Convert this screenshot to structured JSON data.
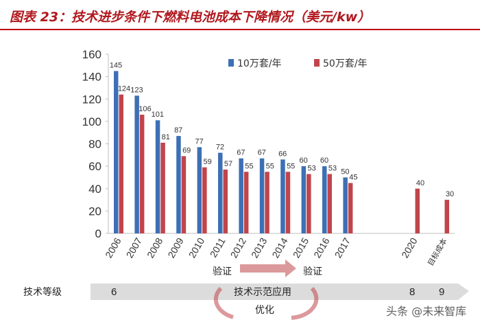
{
  "header": {
    "title": "图表 23：技术进步条件下燃料电池成本下降情况（美元/kw）"
  },
  "colors": {
    "series1": "#3d6fb5",
    "series2": "#c0454b",
    "title": "#b0181e",
    "arrow": "#d9d9d9",
    "cycle": "#c0454b"
  },
  "chart_data": {
    "type": "bar",
    "categories": [
      "2006",
      "2007",
      "2008",
      "2009",
      "2010",
      "2011",
      "2012",
      "2013",
      "2014",
      "2015",
      "2016",
      "2017",
      "2020",
      "目标成本"
    ],
    "series": [
      {
        "name": "10万套/年",
        "values": [
          145,
          123,
          101,
          87,
          77,
          72,
          67,
          67,
          66,
          60,
          60,
          50,
          null,
          null
        ]
      },
      {
        "name": "50万套/年",
        "values": [
          124,
          106,
          81,
          69,
          59,
          57,
          55,
          55,
          55,
          53,
          53,
          45,
          40,
          30
        ]
      }
    ],
    "ylim": [
      0,
      160
    ],
    "yticks": [
      0,
      20,
      40,
      60,
      80,
      100,
      120,
      140,
      160
    ],
    "legend_position": "top-right",
    "grid": false
  },
  "annotations": {
    "verify_left": "验证",
    "verify_right": "验证",
    "tech_level_label": "技术等级",
    "level_start": "6",
    "demo_label": "技术示范应用",
    "level_8": "8",
    "level_9": "9",
    "optimize": "优化"
  },
  "watermark": "头条 @未来智库"
}
